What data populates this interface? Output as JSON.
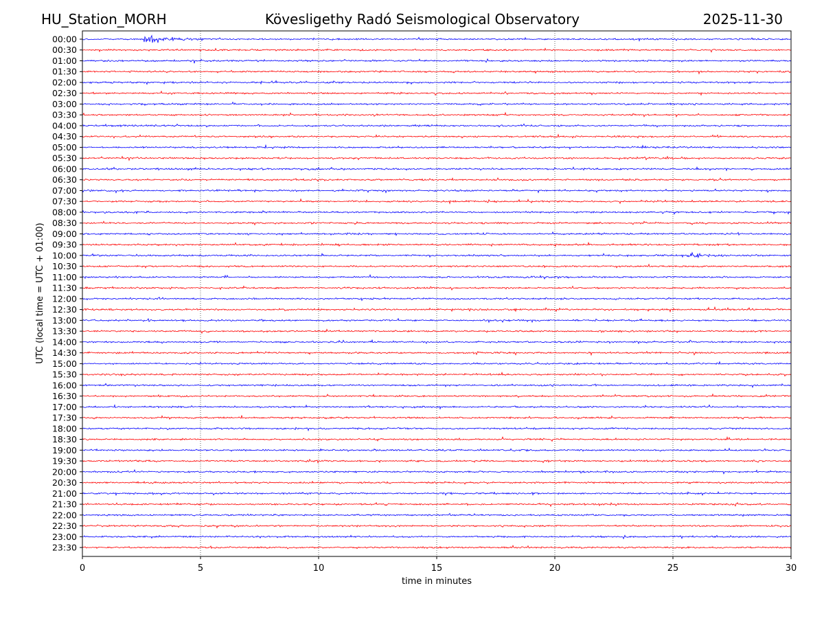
{
  "header": {
    "station": "HU_Station_MORH",
    "title": "Kövesligethy Radó Seismological Observatory",
    "date": "2025-11-30"
  },
  "chart_data": {
    "type": "line",
    "subtype": "helicorder",
    "title": "Kövesligethy Radó Seismological Observatory",
    "xlabel": "time in minutes",
    "ylabel": "UTC (local time = UTC + 01:00)",
    "xlim": [
      0,
      30
    ],
    "x_ticks": [
      "0",
      "5",
      "10",
      "15",
      "20",
      "25",
      "30"
    ],
    "grid": "vertical dotted at each x tick",
    "colors": [
      "#0000ff",
      "#ff0000"
    ],
    "rows": [
      "00:00",
      "00:30",
      "01:00",
      "01:30",
      "02:00",
      "02:30",
      "03:00",
      "03:30",
      "04:00",
      "04:30",
      "05:00",
      "05:30",
      "06:00",
      "06:30",
      "07:00",
      "07:30",
      "08:00",
      "08:30",
      "09:00",
      "09:30",
      "10:00",
      "10:30",
      "11:00",
      "11:30",
      "12:00",
      "12:30",
      "13:00",
      "13:30",
      "14:00",
      "14:30",
      "15:00",
      "15:30",
      "16:00",
      "16:30",
      "17:00",
      "17:30",
      "18:00",
      "18:30",
      "19:00",
      "19:30",
      "20:00",
      "20:30",
      "21:00",
      "21:30",
      "22:00",
      "22:30",
      "23:00",
      "23:30"
    ],
    "events": [
      {
        "row": "00:00",
        "start_min": 2.6,
        "end_min": 5.0,
        "relative_amplitude": 5
      },
      {
        "row": "10:00",
        "start_min": 25.5,
        "end_min": 27.5,
        "relative_amplitude": 2.5
      },
      {
        "row": "21:30",
        "start_min": 27.6,
        "end_min": 28.2,
        "relative_amplitude": 2
      }
    ]
  }
}
